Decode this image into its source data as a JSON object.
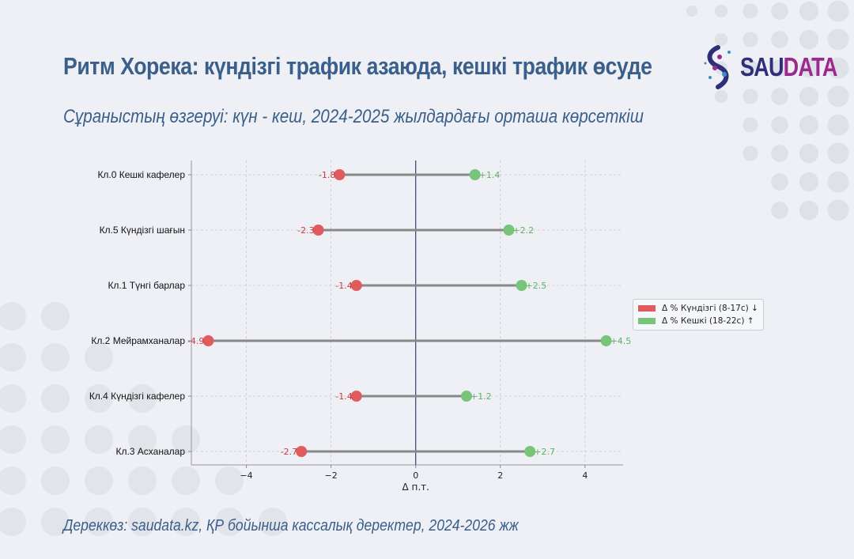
{
  "header": {
    "title": "Ритм Хорека: күндізгі трафик азаюда, кешкі трафик өсуде",
    "subtitle": "Сұраныстың өзгеруі: күн - кеш, 2024-2025 жылдардағы орташа көрсеткіш",
    "logo_text_a": "SAU",
    "logo_text_b": "DATA"
  },
  "footer": {
    "source": "Дереккөз: saudata.kz, ҚР бойынша кассалық деректер, 2024-2026 жж"
  },
  "chart_data": {
    "type": "dumbbell",
    "categories": [
      "Кл.0 Кешкі кафелер",
      "Кл.5 Күндізгі шағын",
      "Кл.1 Түнгі барлар",
      "Кл.2 Мейрамханалар",
      "Кл.4 Күндізгі кафелер",
      "Кл.3 Асханалар"
    ],
    "series": [
      {
        "name": "Δ % Күндізгі (8-17с) ↓",
        "color": "#e05a5e",
        "values": [
          -1.8,
          -2.3,
          -1.4,
          -4.9,
          -1.4,
          -2.7
        ],
        "labels": [
          "-1.8",
          "-2.3",
          "-1.4",
          "-4.9",
          "-1.4",
          "-2.7"
        ]
      },
      {
        "name": "Δ % Кешкі (18-22с) ↑",
        "color": "#77c47a",
        "values": [
          1.4,
          2.2,
          2.5,
          4.5,
          1.2,
          2.7
        ],
        "labels": [
          "+1.4",
          "+2.2",
          "+2.5",
          "+4.5",
          "+1.2",
          "+2.7"
        ]
      }
    ],
    "xlabel": "Δ п.т.",
    "xlim": [
      -5.3,
      4.9
    ],
    "xticks": [
      -4,
      -2,
      0,
      2,
      4
    ],
    "xtick_labels": [
      "−4",
      "−2",
      "0",
      "2",
      "4"
    ],
    "grid": true,
    "legend": "right"
  }
}
